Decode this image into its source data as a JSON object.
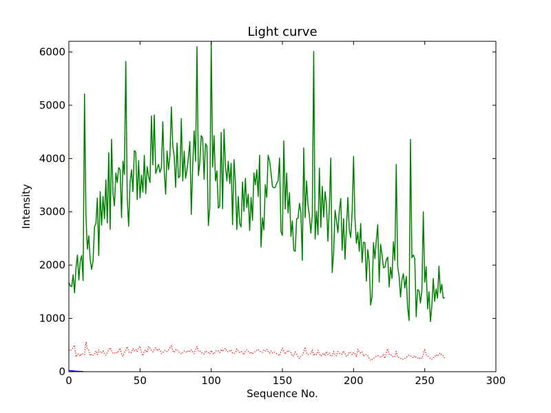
{
  "chart_data": {
    "type": "line",
    "title": "Light curve",
    "xlabel": "Sequence No.",
    "ylabel": "Intensity",
    "xlim": [
      0,
      300
    ],
    "ylim": [
      0,
      6200
    ],
    "xticks": [
      0,
      50,
      100,
      150,
      200,
      250,
      300
    ],
    "xtick_labels": [
      "0",
      "50",
      "100",
      "150",
      "200",
      "250",
      "300"
    ],
    "yticks": [
      0,
      1000,
      2000,
      3000,
      4000,
      5000,
      6000
    ],
    "ytick_labels": [
      "0",
      "1000",
      "2000",
      "3000",
      "4000",
      "5000",
      "6000"
    ],
    "grid": false,
    "legend": false,
    "series": [
      {
        "color": "#008000",
        "linestyle": "solid",
        "values": [
          1670,
          1610,
          1600,
          1820,
          1480,
          1950,
          2190,
          1720,
          2080,
          2180,
          1710,
          5210,
          2920,
          2300,
          2550,
          2100,
          1920,
          2080,
          2720,
          2780,
          3260,
          2180,
          3380,
          2750,
          3290,
          2870,
          3600,
          2790,
          4110,
          2670,
          4360,
          3340,
          3110,
          3730,
          3550,
          3830,
          3790,
          2890,
          3950,
          3700,
          5820,
          3250,
          2730,
          3550,
          3790,
          3380,
          4150,
          4120,
          3230,
          3960,
          3260,
          3690,
          3370,
          4060,
          3340,
          3850,
          3660,
          3550,
          4800,
          3880,
          4820,
          3720,
          3810,
          3890,
          3740,
          3830,
          4690,
          3760,
          3330,
          4140,
          3790,
          4060,
          4970,
          4240,
          4040,
          3460,
          4290,
          3640,
          3670,
          4750,
          3580,
          4140,
          3630,
          3790,
          4030,
          4320,
          2950,
          3860,
          4520,
          3950,
          6100,
          3680,
          3930,
          4430,
          4380,
          3610,
          4280,
          4230,
          2740,
          3080,
          6200,
          3840,
          4430,
          3580,
          3770,
          3070,
          3110,
          4490,
          3060,
          4550,
          3860,
          3580,
          3950,
          3530,
          3910,
          2760,
          3980,
          3550,
          2670,
          3290,
          2780,
          2720,
          3560,
          3010,
          3630,
          3080,
          3330,
          2650,
          3270,
          2840,
          3730,
          3510,
          3790,
          3290,
          4060,
          2340,
          2890,
          2660,
          3510,
          3270,
          4060,
          3960,
          3740,
          3480,
          3450,
          3460,
          3540,
          3580,
          4010,
          2630,
          2560,
          4330,
          3050,
          3730,
          2980,
          3360,
          2540,
          2830,
          2280,
          2260,
          2870,
          2880,
          3160,
          2990,
          2090,
          4200,
          2890,
          3580,
          3130,
          2920,
          2600,
          2940,
          6010,
          2490,
          3010,
          2570,
          3820,
          2710,
          3480,
          2900,
          3380,
          3130,
          2450,
          3100,
          4010,
          1860,
          2230,
          3030,
          2840,
          2610,
          3020,
          3250,
          2280,
          2870,
          2110,
          2700,
          3270,
          2660,
          2520,
          2990,
          4040,
          2870,
          2410,
          2620,
          2260,
          2780,
          2050,
          2430,
          2420,
          1700,
          2290,
          2050,
          1250,
          1410,
          2420,
          2120,
          2470,
          2760,
          1680,
          2390,
          2200,
          1950,
          1960,
          2100,
          2150,
          1590,
          1960,
          1750,
          2440,
          2090,
          3890,
          1970,
          1790,
          1400,
          1730,
          1840,
          1570,
          1790,
          1200,
          960,
          4360,
          2140,
          2190,
          2120,
          1030,
          1540,
          1520,
          1290,
          1520,
          3000,
          1680,
          1970,
          1180,
          1500,
          940,
          1230,
          1750,
          1320,
          1550,
          1380,
          1980,
          1480,
          1640,
          1380,
          1390
        ]
      },
      {
        "color": "#ff0000",
        "linestyle": "dotted",
        "values": [
          410,
          390,
          420,
          450,
          500,
          280,
          330,
          330,
          290,
          340,
          330,
          320,
          560,
          420,
          400,
          300,
          330,
          310,
          330,
          390,
          320,
          410,
          370,
          350,
          390,
          340,
          310,
          360,
          410,
          450,
          390,
          350,
          340,
          370,
          350,
          400,
          440,
          330,
          290,
          360,
          400,
          470,
          380,
          350,
          360,
          430,
          390,
          420,
          380,
          450,
          480,
          350,
          300,
          390,
          410,
          360,
          470,
          440,
          400,
          370,
          420,
          450,
          390,
          430,
          410,
          340,
          360,
          390,
          400,
          380,
          410,
          450,
          500,
          390,
          360,
          410,
          420,
          380,
          350,
          330,
          360,
          390,
          380,
          360,
          400,
          380,
          410,
          370,
          340,
          420,
          470,
          390,
          400,
          360,
          350,
          330,
          390,
          370,
          360,
          330,
          400,
          350,
          330,
          380,
          400,
          390,
          360,
          420,
          380,
          410,
          440,
          390,
          370,
          390,
          410,
          350,
          340,
          360,
          430,
          390,
          360,
          380,
          360,
          320,
          390,
          410,
          380,
          350,
          370,
          330,
          360,
          380,
          400,
          420,
          390,
          370,
          360,
          410,
          390,
          420,
          380,
          350,
          390,
          350,
          370,
          360,
          340,
          320,
          300,
          380,
          440,
          390,
          330,
          370,
          400,
          380,
          360,
          290,
          300,
          370,
          330,
          280,
          250,
          290,
          310,
          370,
          460,
          340,
          320,
          330,
          340,
          410,
          300,
          340,
          320,
          400,
          330,
          290,
          320,
          350,
          300,
          380,
          320,
          350,
          290,
          300,
          380,
          320,
          300,
          380,
          350,
          330,
          330,
          390,
          340,
          290,
          300,
          370,
          360,
          320,
          360,
          340,
          290,
          420,
          370,
          350,
          370,
          290,
          320,
          320,
          300,
          250,
          210,
          230,
          250,
          270,
          290,
          300,
          290,
          270,
          290,
          320,
          250,
          360,
          430,
          330,
          330,
          290,
          280,
          280,
          380,
          270,
          270,
          250,
          240,
          230,
          250,
          270,
          290,
          310,
          300,
          280,
          260,
          300,
          270,
          260,
          240,
          270,
          250,
          320,
          430,
          320,
          300,
          270,
          250,
          230,
          260,
          280,
          320,
          290,
          330,
          350,
          310,
          300,
          250
        ]
      },
      {
        "color": "#0000ff",
        "linestyle": "solid",
        "values": [
          20,
          20,
          18,
          15,
          12,
          10,
          8,
          6,
          5,
          4,
          3
        ]
      }
    ]
  }
}
